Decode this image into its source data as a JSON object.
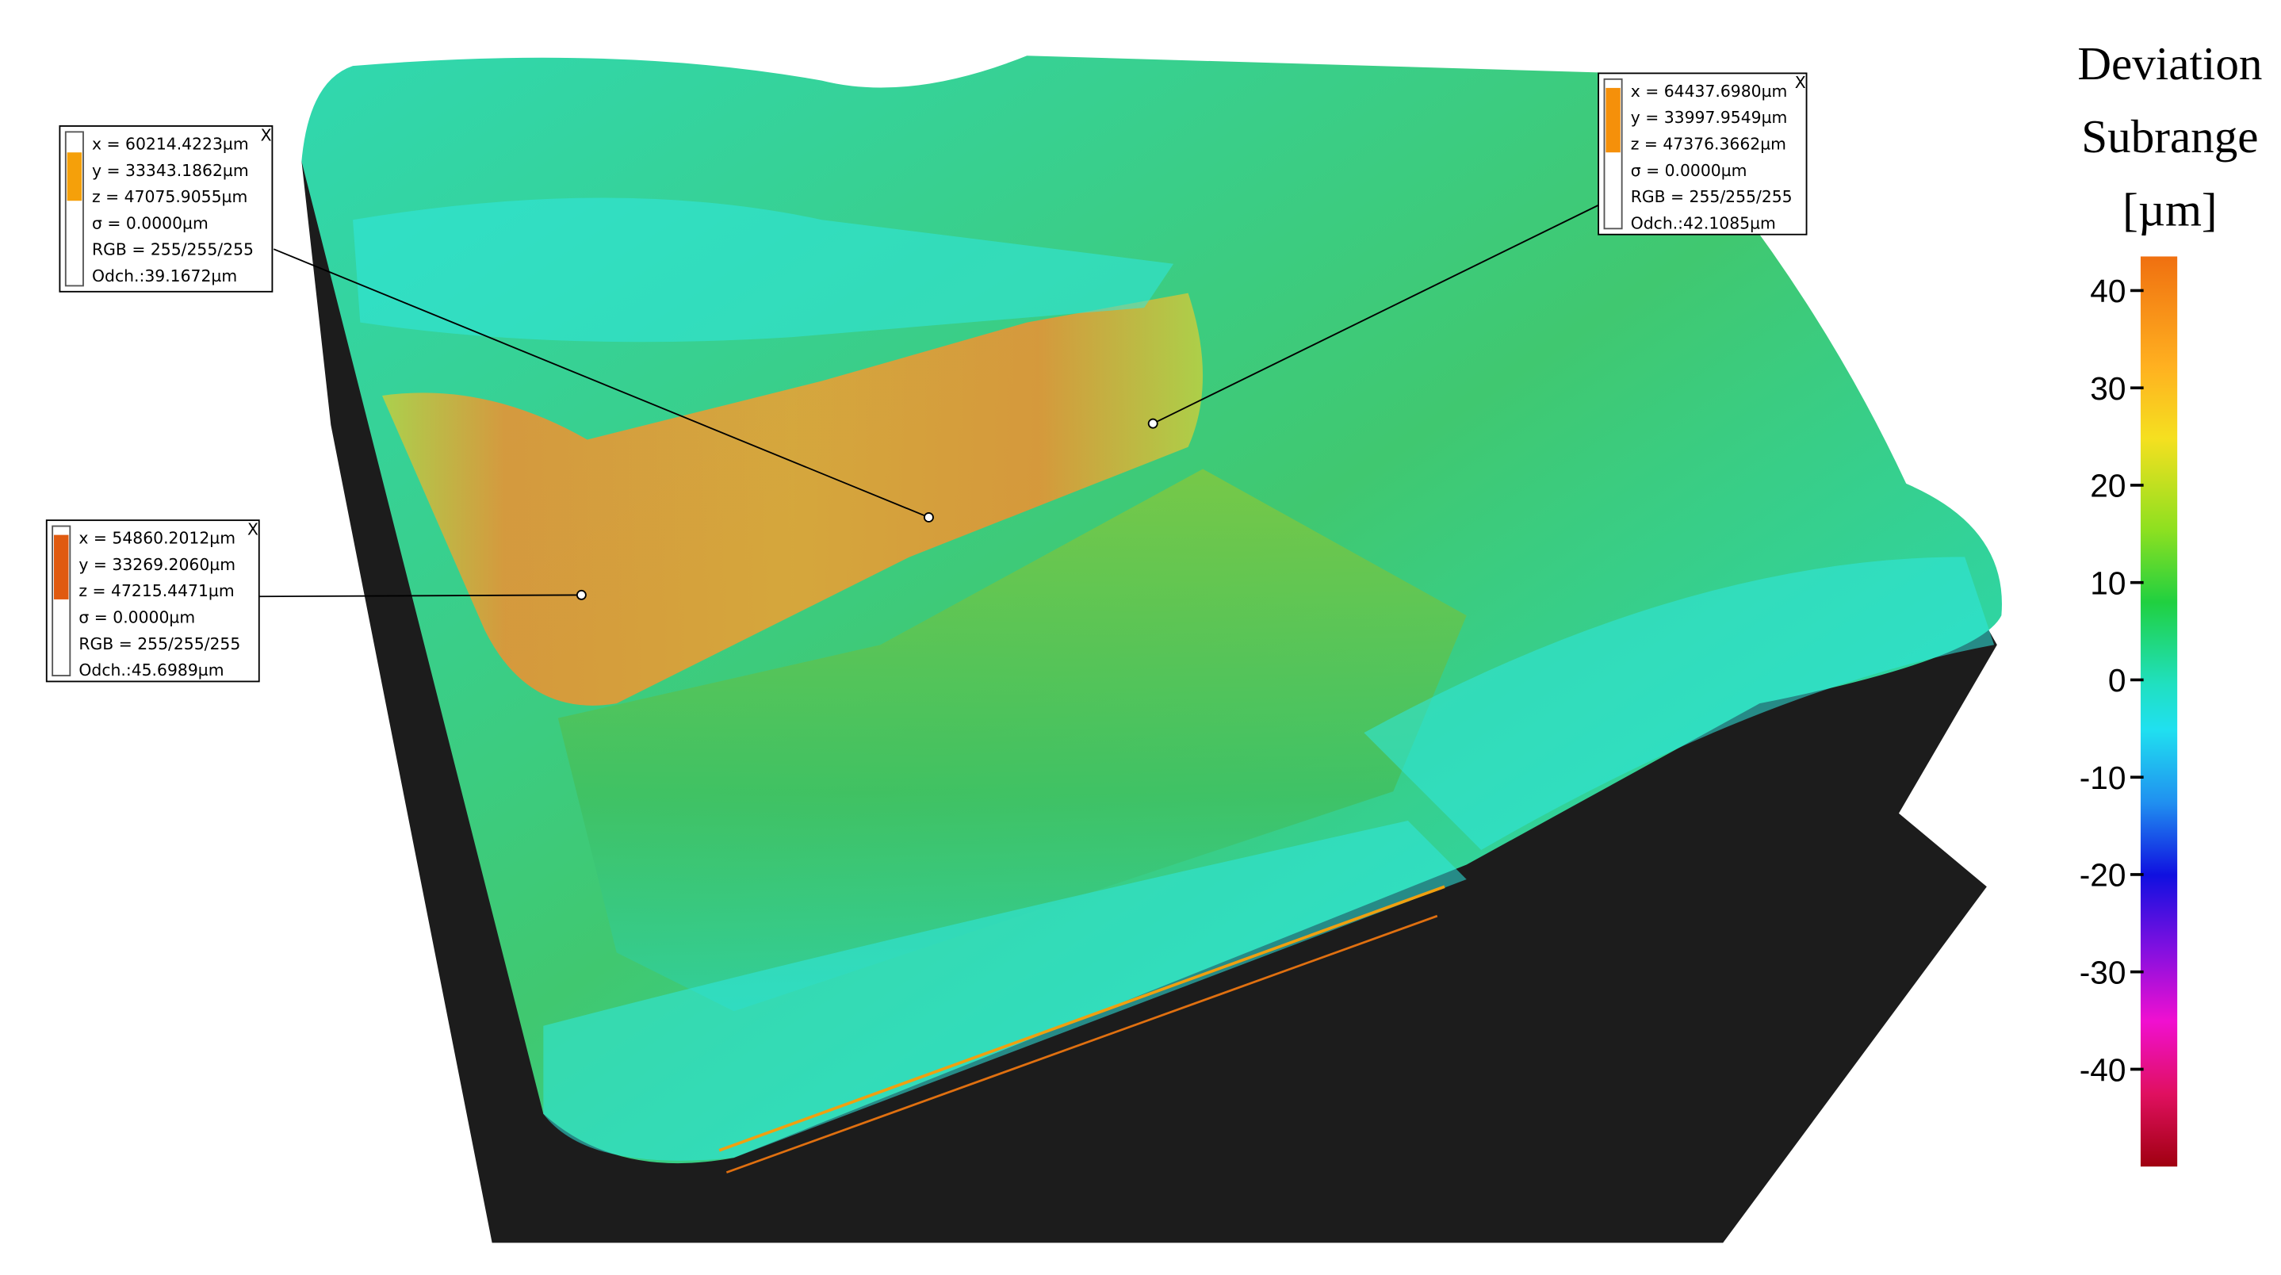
{
  "colorbar": {
    "title": [
      "Deviation",
      "Subrange",
      "[µm]"
    ],
    "limits": [
      43.5,
      -50
    ],
    "ticks": [
      40,
      30,
      20,
      10,
      0,
      -10,
      -20,
      -30,
      -40
    ]
  },
  "annotations": [
    {
      "lines": [
        "x = 60214.4223µm",
        "y = 33343.1862µm",
        "z = 47075.9055µm",
        "σ = 0.0000µm",
        "RGB = 255/255/255",
        "Odch.:39.1672µm"
      ],
      "close": "X"
    },
    {
      "lines": [
        "x = 64437.6980µm",
        "y = 33997.9549µm",
        "z = 47376.3662µm",
        "σ = 0.0000µm",
        "RGB = 255/255/255",
        "Odch.:42.1085µm"
      ],
      "close": "X"
    },
    {
      "lines": [
        "x = 54860.2012µm",
        "y = 33269.2060µm",
        "z = 47215.4471µm",
        "σ = 0.0000µm",
        "RGB = 255/255/255",
        "Odch.:45.6989µm"
      ],
      "close": "X"
    }
  ]
}
